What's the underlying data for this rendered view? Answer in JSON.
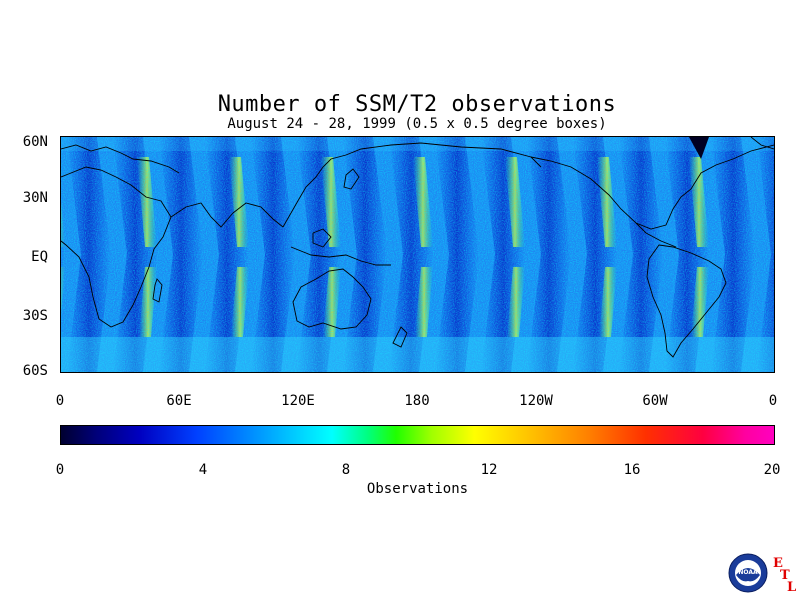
{
  "title": "Number of SSM/T2 observations",
  "subtitle": "August 24 - 28, 1999 (0.5 x 0.5 degree boxes)",
  "map": {
    "lat_labels": [
      "60N",
      "30N",
      "EQ",
      "30S",
      "60S"
    ],
    "lon_labels": [
      "0",
      "60E",
      "120E",
      "180",
      "120W",
      "60W",
      "0"
    ]
  },
  "colorbar": {
    "ticks": [
      "0",
      "4",
      "8",
      "12",
      "16",
      "20"
    ],
    "label": "Observations",
    "min": 0,
    "max": 20
  },
  "logo": {
    "text": "NOAA",
    "etl": [
      "E",
      "T",
      "L"
    ]
  },
  "colors": {
    "background_field": "#1e7cf0",
    "dense_swath": "#0a2cd0",
    "gap": "#00ffff",
    "high": "#ffff00",
    "coast": "#000000"
  }
}
